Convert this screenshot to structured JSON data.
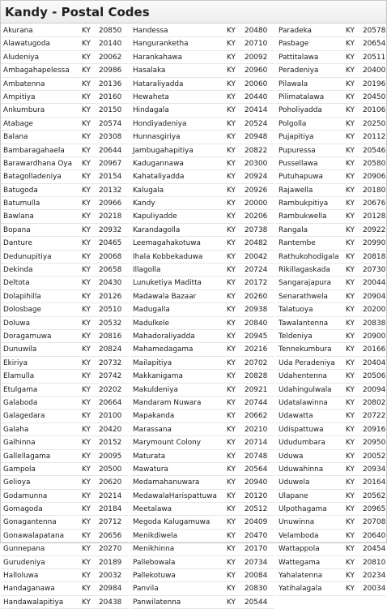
{
  "page": {
    "title": "Kandy - Postal Codes"
  },
  "columns": [
    {
      "rows": [
        {
          "name": "Akurana",
          "district": "KY",
          "code": "20850"
        },
        {
          "name": "Alawatugoda",
          "district": "KY",
          "code": "20140"
        },
        {
          "name": "Aludeniya",
          "district": "KY",
          "code": "20062"
        },
        {
          "name": "Ambagahapelessa",
          "district": "KY",
          "code": "20986"
        },
        {
          "name": "Ambatenna",
          "district": "KY",
          "code": "20136"
        },
        {
          "name": "Ampitiya",
          "district": "KY",
          "code": "20160"
        },
        {
          "name": "Ankumbura",
          "district": "KY",
          "code": "20150"
        },
        {
          "name": "Atabage",
          "district": "KY",
          "code": "20574"
        },
        {
          "name": "Balana",
          "district": "KY",
          "code": "20308"
        },
        {
          "name": "Bambaragahaela",
          "district": "KY",
          "code": "20644"
        },
        {
          "name": "Barawardhana Oya",
          "district": "KY",
          "code": "20967"
        },
        {
          "name": "Batagolladeniya",
          "district": "KY",
          "code": "20154"
        },
        {
          "name": "Batugoda",
          "district": "KY",
          "code": "20132"
        },
        {
          "name": "Batumulla",
          "district": "KY",
          "code": "20966"
        },
        {
          "name": "Bawlana",
          "district": "KY",
          "code": "20218"
        },
        {
          "name": "Bopana",
          "district": "KY",
          "code": "20932"
        },
        {
          "name": "Danture",
          "district": "KY",
          "code": "20465"
        },
        {
          "name": "Dedunupitiya",
          "district": "KY",
          "code": "20068"
        },
        {
          "name": "Dekinda",
          "district": "KY",
          "code": "20658"
        },
        {
          "name": "Deltota",
          "district": "KY",
          "code": "20430"
        },
        {
          "name": "Dolapihilla",
          "district": "KY",
          "code": "20126"
        },
        {
          "name": "Dolosbage",
          "district": "KY",
          "code": "20510"
        },
        {
          "name": "Doluwa",
          "district": "KY",
          "code": "20532"
        },
        {
          "name": "Doragamuwa",
          "district": "KY",
          "code": "20816"
        },
        {
          "name": "Dunuwila",
          "district": "KY",
          "code": "20824"
        },
        {
          "name": "Ekiriya",
          "district": "KY",
          "code": "20732"
        },
        {
          "name": "Elamulla",
          "district": "KY",
          "code": "20742"
        },
        {
          "name": "Etulgama",
          "district": "KY",
          "code": "20202"
        },
        {
          "name": "Galaboda",
          "district": "KY",
          "code": "20664"
        },
        {
          "name": "Galagedara",
          "district": "KY",
          "code": "20100"
        },
        {
          "name": "Galaha",
          "district": "KY",
          "code": "20420"
        },
        {
          "name": "Galhinna",
          "district": "KY",
          "code": "20152"
        },
        {
          "name": "Gallellagama",
          "district": "KY",
          "code": "20095"
        },
        {
          "name": "Gampola",
          "district": "KY",
          "code": "20500"
        },
        {
          "name": "Gelioya",
          "district": "KY",
          "code": "20620"
        },
        {
          "name": "Godamunna",
          "district": "KY",
          "code": "20214"
        },
        {
          "name": "Gomagoda",
          "district": "KY",
          "code": "20184"
        },
        {
          "name": "Gonagantenna",
          "district": "KY",
          "code": "20712"
        },
        {
          "name": "Gonawalapatana",
          "district": "KY",
          "code": "20656"
        },
        {
          "name": "Gunnepana",
          "district": "KY",
          "code": "20270"
        },
        {
          "name": "Gurudeniya",
          "district": "KY",
          "code": "20189"
        },
        {
          "name": "Halloluwa",
          "district": "KY",
          "code": "20032"
        },
        {
          "name": "Handaganawa",
          "district": "KY",
          "code": "20984"
        },
        {
          "name": "Handawalapitiya",
          "district": "KY",
          "code": "20438"
        }
      ]
    },
    {
      "rows": [
        {
          "name": "Handessa",
          "district": "KY",
          "code": "20480"
        },
        {
          "name": "Hanguranketha",
          "district": "KY",
          "code": "20710"
        },
        {
          "name": "Harankahawa",
          "district": "KY",
          "code": "20092"
        },
        {
          "name": "Hasalaka",
          "district": "KY",
          "code": "20960"
        },
        {
          "name": "Hataraliyadda",
          "district": "KY",
          "code": "20060"
        },
        {
          "name": "Hewaheta",
          "district": "KY",
          "code": "20440"
        },
        {
          "name": "Hindagala",
          "district": "KY",
          "code": "20414"
        },
        {
          "name": "Hondiyadeniya",
          "district": "KY",
          "code": "20524"
        },
        {
          "name": "Hunnasgiriya",
          "district": "KY",
          "code": "20948"
        },
        {
          "name": "Jambugahapitiya",
          "district": "KY",
          "code": "20822"
        },
        {
          "name": "Kadugannawa",
          "district": "KY",
          "code": "20300"
        },
        {
          "name": "Kahataliyadda",
          "district": "KY",
          "code": "20924"
        },
        {
          "name": "Kalugala",
          "district": "KY",
          "code": "20926"
        },
        {
          "name": "Kandy",
          "district": "KY",
          "code": "20000"
        },
        {
          "name": "Kapuliyadde",
          "district": "KY",
          "code": "20206"
        },
        {
          "name": "Karandagolla",
          "district": "KY",
          "code": "20738"
        },
        {
          "name": "Leemagahakotuwa",
          "district": "KY",
          "code": "20482"
        },
        {
          "name": "Ihala Kobbekaduwa",
          "district": "KY",
          "code": "20042"
        },
        {
          "name": "Illagolla",
          "district": "KY",
          "code": "20724"
        },
        {
          "name": "Lunuketiya Maditta",
          "district": "KY",
          "code": "20172"
        },
        {
          "name": "Madawala Bazaar",
          "district": "KY",
          "code": "20260"
        },
        {
          "name": "Madugalla",
          "district": "KY",
          "code": "20938"
        },
        {
          "name": "Madulkele",
          "district": "KY",
          "code": "20840"
        },
        {
          "name": "Mahadoraliyadda",
          "district": "KY",
          "code": "20945"
        },
        {
          "name": "Mahamedagama",
          "district": "KY",
          "code": "20216"
        },
        {
          "name": "Mailapitiya",
          "district": "KY",
          "code": "20702"
        },
        {
          "name": "Makkanigama",
          "district": "KY",
          "code": "20828"
        },
        {
          "name": "Makuldeniya",
          "district": "KY",
          "code": "20921"
        },
        {
          "name": "Mandaram Nuwara",
          "district": "KY",
          "code": "20744"
        },
        {
          "name": "Mapakanda",
          "district": "KY",
          "code": "20662"
        },
        {
          "name": "Marassana",
          "district": "KY",
          "code": "20210"
        },
        {
          "name": "Marymount Colony",
          "district": "KY",
          "code": "20714"
        },
        {
          "name": "Maturata",
          "district": "KY",
          "code": "20748"
        },
        {
          "name": "Mawatura",
          "district": "KY",
          "code": "20564"
        },
        {
          "name": "Medamahanuwara",
          "district": "KY",
          "code": "20940"
        },
        {
          "name": "MedawalaHarispattuwa",
          "district": "KY",
          "code": "20120"
        },
        {
          "name": "Meetalawa",
          "district": "KY",
          "code": "20512"
        },
        {
          "name": "Megoda Kalugamuwa",
          "district": "KY",
          "code": "20409"
        },
        {
          "name": "Menikdiwela",
          "district": "KY",
          "code": "20470"
        },
        {
          "name": "Menikhinna",
          "district": "KY",
          "code": "20170"
        },
        {
          "name": "Pallebowala",
          "district": "KY",
          "code": "20734"
        },
        {
          "name": "Pallekotuwa",
          "district": "KY",
          "code": "20084"
        },
        {
          "name": "Panvila",
          "district": "KY",
          "code": "20830"
        },
        {
          "name": "Panwilatenna",
          "district": "KY",
          "code": "20544"
        }
      ]
    },
    {
      "rows": [
        {
          "name": "Paradeka",
          "district": "KY",
          "code": "20578"
        },
        {
          "name": "Pasbage",
          "district": "KY",
          "code": "20654"
        },
        {
          "name": "Pattitalawa",
          "district": "KY",
          "code": "20511"
        },
        {
          "name": "Peradeniya",
          "district": "KY",
          "code": "20400"
        },
        {
          "name": "Pilawala",
          "district": "KY",
          "code": "20196"
        },
        {
          "name": "Pilimatalawa",
          "district": "KY",
          "code": "20450"
        },
        {
          "name": "Poholiyadda",
          "district": "KY",
          "code": "20106"
        },
        {
          "name": "Polgolla",
          "district": "KY",
          "code": "20250"
        },
        {
          "name": "Pujapitiya",
          "district": "KY",
          "code": "20112"
        },
        {
          "name": "Pupuressa",
          "district": "KY",
          "code": "20546"
        },
        {
          "name": "Pussellawa",
          "district": "KY",
          "code": "20580"
        },
        {
          "name": "Putuhapuwa",
          "district": "KY",
          "code": "20906"
        },
        {
          "name": "Rajawella",
          "district": "KY",
          "code": "20180"
        },
        {
          "name": "Rambukpitiya",
          "district": "KY",
          "code": "20676"
        },
        {
          "name": "Rambukwella",
          "district": "KY",
          "code": "20128"
        },
        {
          "name": "Rangala",
          "district": "KY",
          "code": "20922"
        },
        {
          "name": "Rantembe",
          "district": "KY",
          "code": "20990"
        },
        {
          "name": "Rathukohodigala",
          "district": "KY",
          "code": "20818"
        },
        {
          "name": "Rikillagaskada",
          "district": "KY",
          "code": "20730"
        },
        {
          "name": "Sangarajapura",
          "district": "KY",
          "code": "20044"
        },
        {
          "name": "Senarathwela",
          "district": "KY",
          "code": "20904"
        },
        {
          "name": "Talatuoya",
          "district": "KY",
          "code": "20200"
        },
        {
          "name": "Tawalantenna",
          "district": "KY",
          "code": "20838"
        },
        {
          "name": "Teldeniya",
          "district": "KY",
          "code": "20900"
        },
        {
          "name": "Tennekumbura",
          "district": "KY",
          "code": "20166"
        },
        {
          "name": "Uda Peradeniya",
          "district": "KY",
          "code": "20404"
        },
        {
          "name": "Udahentenna",
          "district": "KY",
          "code": "20506"
        },
        {
          "name": "Udahingulwala",
          "district": "KY",
          "code": "20094"
        },
        {
          "name": "Udatalawinna",
          "district": "KY",
          "code": "20802"
        },
        {
          "name": "Udawatta",
          "district": "KY",
          "code": "20722"
        },
        {
          "name": "Udispattuwa",
          "district": "KY",
          "code": "20916"
        },
        {
          "name": "Ududumbara",
          "district": "KY",
          "code": "20950"
        },
        {
          "name": "Uduwa",
          "district": "KY",
          "code": "20052"
        },
        {
          "name": "Uduwahinna",
          "district": "KY",
          "code": "20934"
        },
        {
          "name": "Uduwela",
          "district": "KY",
          "code": "20164"
        },
        {
          "name": "Ulapane",
          "district": "KY",
          "code": "20562"
        },
        {
          "name": "Ulpothagama",
          "district": "KY",
          "code": "20965"
        },
        {
          "name": "Unuwinna",
          "district": "KY",
          "code": "20708"
        },
        {
          "name": "Velamboda",
          "district": "KY",
          "code": "20640"
        },
        {
          "name": "Wattappola",
          "district": "KY",
          "code": "20454"
        },
        {
          "name": "Wattegama",
          "district": "KY",
          "code": "20810"
        },
        {
          "name": "Yahalatenna",
          "district": "KY",
          "code": "20234"
        },
        {
          "name": "Yatihalagala",
          "district": "KY",
          "code": "20034"
        }
      ]
    }
  ]
}
